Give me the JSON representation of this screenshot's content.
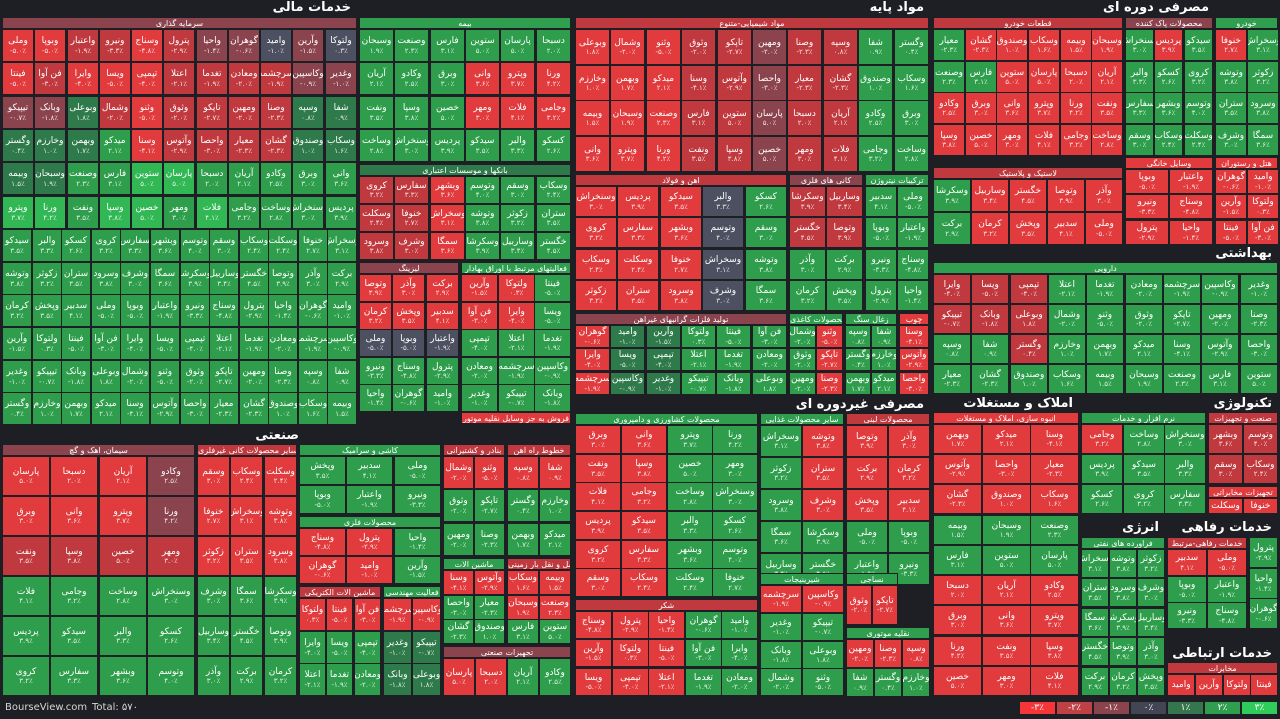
{
  "sectors": {
    "khadamat_mali": "خدمات مالی",
    "mavad_payeh": "مواد پایه",
    "masrafi_doreh_ei": "مصرفی دوره ای",
    "behdashti": "بهداشتی",
    "sanati": "صنعتی",
    "masrafi_gheyr_doreh_ei": "مصرفی غیردوره ای",
    "amlak": "املاک و مستغلات",
    "technology": "تکنولوژی",
    "energy": "انرژی",
    "khadamat_refahi": "خدمات رفاهی",
    "khadamat_ertebati": "خدمات ارتباطی",
    "cut_label": "عمده"
  },
  "subs": {
    "sarmaye": "سرمایه گذاری",
    "bimeh": "بیمه",
    "banks": "بانکها و موسسات اعتباری",
    "lizing": "لیزینگ",
    "faaliat_bahadar": "فعالیتهای مرتبط با اوراق بهادار",
    "shimiaei": "مواد شیمیایی-متنوع",
    "ahan": "اهن و فولاد",
    "kani": "کانی های فلزی",
    "nitrogen": "ترکیبات نیتروژن",
    "folad_gheyr_ahan": "تولید فلزات گرانبهای غیراهن",
    "kaghazi": "محصولات کاغذی",
    "zoghal": "زغال سنگ",
    "chob": "چوب",
    "khodro": "قطعات خودرو",
    "pakkonandeh": "محصولات پاک کننده",
    "khodro_main": "خودرو",
    "lastik": "لاستیک و پلاستیک",
    "vasayel_khanegi": "وسایل خانگی",
    "restaurant": "هتل و رستوران",
    "darooei": "دارویی",
    "siman": "سیمان، اهک و گچ",
    "sayer_kani": "سایر محصولات کانی غیرفلزی",
    "kashi": "کاشی و سرامیک",
    "felezi": "محصولات فلزی",
    "mohandesi": "فعالیت مهندسی",
    "electric": "ماشین الات الکتریکی",
    "bandar": "بنادر و کشتیرانی",
    "khotot_rah": "خطوط راه اهن",
    "mashin_alat": "ماشین الات",
    "haml_zamini": "حمل و نقل بار زمینی",
    "tajhizat": "تجهیزات صنعتی",
    "forush_vasayel": "فروش به جز وسایل نقلیه موتور",
    "keshavarzi": "محصولات کشاورزی و دامپروری",
    "ghazaei": "سایر محصولات غذایی",
    "labani": "محصولات لبنی",
    "shirini": "شیرینیجات",
    "nasaji": "نساجی",
    "shekar": "شکر",
    "naghlieh": "نقلیه موتوری",
    "anboh_sazi": "انبوه سازی، املاک و مستغلات",
    "narm_afzar": "نرم افزار و خدمات",
    "sanat_tajhizat": "صنعت و تجهیزات",
    "tajhizat_ertebati": "تجهیزات مخابراتی",
    "faravardeh": "فراورده های نفتی",
    "refahi_morab": "خدمات رفاهی-مرتبط",
    "mokhaberat": "مخابرات"
  },
  "cells": [
    {
      "s": "وملی",
      "p": "-۵.۰٪",
      "c": "r3"
    },
    {
      "s": "وبوپا",
      "p": "-۵.۰٪",
      "c": "r3"
    },
    {
      "s": "واعتبار",
      "p": "-۱.۹٪",
      "c": "r2"
    },
    {
      "s": "ونیرو",
      "p": "-۳.۳٪",
      "c": "r2"
    },
    {
      "s": "وسناج",
      "p": "-۴.۸٪",
      "c": "r3"
    },
    {
      "s": "پترول",
      "p": "-۲.۹٪",
      "c": "r2"
    },
    {
      "s": "واحیا",
      "p": "-۱.۴٪",
      "c": "r1"
    },
    {
      "s": "گوهران",
      "p": "-۰.۶٪",
      "c": "r1"
    },
    {
      "s": "وامید",
      "p": "-۱.۰٪",
      "c": "n"
    },
    {
      "s": "وآرین",
      "p": "-۱.۵٪",
      "c": "r1"
    },
    {
      "s": "ولتوکا",
      "p": "۰.۳٪",
      "c": "n"
    },
    {
      "s": "فینتا",
      "p": "-۵.۰٪",
      "c": "r3"
    },
    {
      "s": "فن آوا",
      "p": "-۳.۰٪",
      "c": "r2"
    },
    {
      "s": "وایرا",
      "p": "-۴.۰٪",
      "c": "r3"
    },
    {
      "s": "ویسا",
      "p": "-۵.۰٪",
      "c": "r3"
    },
    {
      "s": "تپمپی",
      "p": "-۴.۰٪",
      "c": "r3"
    },
    {
      "s": "اعتلا",
      "p": "-۲.۱٪",
      "c": "r2"
    },
    {
      "s": "تغدما",
      "p": "-۱.۹٪",
      "c": "r2"
    },
    {
      "s": "ومعادن",
      "p": "-۲.۰٪",
      "c": "r2"
    },
    {
      "s": "سرچشمه",
      "p": "-۱.۹٪",
      "c": "r2"
    },
    {
      "s": "وکاسپین",
      "p": "-۰.۹٪",
      "c": "r1"
    },
    {
      "s": "وغدیر",
      "p": "-۱.۰٪",
      "c": "r1"
    },
    {
      "s": "تیپیکو",
      "p": "-۰.۷٪",
      "c": "r1"
    },
    {
      "s": "وبانک",
      "p": "-۱.۸٪",
      "c": "r1"
    },
    {
      "s": "وبوعلی",
      "p": "۱.۸٪",
      "c": "g1"
    },
    {
      "s": "وشمال",
      "p": "-۲.۰٪",
      "c": "r2"
    },
    {
      "s": "وثنو",
      "p": "-۵.۰٪",
      "c": "r3"
    },
    {
      "s": "وثوق",
      "p": "-۲.۰٪",
      "c": "r2"
    },
    {
      "s": "تاپکو",
      "p": "-۲.۷٪",
      "c": "r2"
    },
    {
      "s": "ومهین",
      "p": "-۲.۰٪",
      "c": "r2"
    },
    {
      "s": "وصنا",
      "p": "-۲.۳٪",
      "c": "r2"
    },
    {
      "s": "وسپه",
      "p": "۰.۸٪",
      "c": "g1"
    },
    {
      "s": "شفا",
      "p": "۰.۹٪",
      "c": "g1"
    },
    {
      "s": "وگستر",
      "p": "۰.۴٪",
      "c": "g1"
    },
    {
      "s": "وخارزم",
      "p": "۱.۰٪",
      "c": "g1"
    },
    {
      "s": "وبهمن",
      "p": "۱.۷٪",
      "c": "g1"
    },
    {
      "s": "میدکو",
      "p": "۲.۱٪",
      "c": "g2"
    },
    {
      "s": "وسنا",
      "p": "-۴.۱٪",
      "c": "r3"
    },
    {
      "s": "وآتوس",
      "p": "-۲.۹٪",
      "c": "r2"
    },
    {
      "s": "واحصا",
      "p": "-۳.۰٪",
      "c": "r2"
    },
    {
      "s": "معیار",
      "p": "-۲.۳٪",
      "c": "r2"
    },
    {
      "s": "گشان",
      "p": "-۲.۳٪",
      "c": "r2"
    },
    {
      "s": "وصندوق",
      "p": "۱.۰٪",
      "c": "g1"
    },
    {
      "s": "وسکاب",
      "p": "۱.۶٪",
      "c": "g1"
    },
    {
      "s": "وبیمه",
      "p": "۱.۵٪",
      "c": "g1"
    },
    {
      "s": "وسبحان",
      "p": "۱.۹٪",
      "c": "g1"
    },
    {
      "s": "وصنعت",
      "p": "۲.۳٪",
      "c": "g2"
    },
    {
      "s": "فارس",
      "p": "۳.۱٪",
      "c": "g2"
    },
    {
      "s": "ستوین",
      "p": "۵.۰٪",
      "c": "g3"
    },
    {
      "s": "پارسان",
      "p": "۵.۰٪",
      "c": "g3"
    },
    {
      "s": "دسبحا",
      "p": "۲.۰٪",
      "c": "g2"
    },
    {
      "s": "آریان",
      "p": "۲.۱٪",
      "c": "g2"
    },
    {
      "s": "وکادو",
      "p": "۲.۵٪",
      "c": "g2"
    },
    {
      "s": "وبرق",
      "p": "۳.۰٪",
      "c": "g2"
    },
    {
      "s": "وانی",
      "p": "۳.۶٪",
      "c": "g3"
    },
    {
      "s": "وپترو",
      "p": "۳.۷٪",
      "c": "g3"
    },
    {
      "s": "ورنا",
      "p": "۴.۲٪",
      "c": "g3"
    },
    {
      "s": "ونفت",
      "p": "۳.۵٪",
      "c": "g2"
    },
    {
      "s": "وسپا",
      "p": "۳.۸٪",
      "c": "g3"
    },
    {
      "s": "خصین",
      "p": "۵.۰٪",
      "c": "g3"
    },
    {
      "s": "ومهر",
      "p": "۳.۰٪",
      "c": "g2"
    },
    {
      "s": "فلات",
      "p": "۴.۱٪",
      "c": "g3"
    },
    {
      "s": "وجامی",
      "p": "۳.۲٪",
      "c": "g2"
    },
    {
      "s": "وساخت",
      "p": "۲.۸٪",
      "c": "g2"
    },
    {
      "s": "وسنخراش",
      "p": "۳.۰٪",
      "c": "g2"
    },
    {
      "s": "پردیس",
      "p": "۳.۹٪",
      "c": "g3"
    },
    {
      "s": "سیدکو",
      "p": "۳.۵٪",
      "c": "g2"
    },
    {
      "s": "والبر",
      "p": "۳.۳٪",
      "c": "g2"
    },
    {
      "s": "کسکو",
      "p": "۲.۶٪",
      "c": "g2"
    },
    {
      "s": "کروی",
      "p": "۳.۲٪",
      "c": "g2"
    },
    {
      "s": "سفارس",
      "p": "۳.۳٪",
      "c": "g2"
    },
    {
      "s": "وبشهر",
      "p": "۳.۶٪",
      "c": "g3"
    },
    {
      "s": "وتوسم",
      "p": "۴.۰٪",
      "c": "g3"
    },
    {
      "s": "وسقم",
      "p": "۳.۰٪",
      "c": "g2"
    },
    {
      "s": "وسکاب",
      "p": "۲.۴٪",
      "c": "g2"
    },
    {
      "s": "وسکلت",
      "p": "۲.۴٪",
      "c": "g2"
    },
    {
      "s": "خنوفا",
      "p": "۲.۷٪",
      "c": "g2"
    },
    {
      "s": "وسخراش",
      "p": "۳.۱٪",
      "c": "g2"
    },
    {
      "s": "وتوشه",
      "p": "۳.۸٪",
      "c": "g3"
    },
    {
      "s": "زکوثر",
      "p": "۳.۲٪",
      "c": "g2"
    },
    {
      "s": "ستران",
      "p": "۳.۵٪",
      "c": "g2"
    },
    {
      "s": "وسرود",
      "p": "۳.۸٪",
      "c": "g3"
    },
    {
      "s": "وشرف",
      "p": "۳.۰٪",
      "c": "g2"
    },
    {
      "s": "سمگا",
      "p": "۳.۶٪",
      "c": "g3"
    },
    {
      "s": "وسکرشا",
      "p": "۳.۹٪",
      "c": "g3"
    },
    {
      "s": "وساربیل",
      "p": "۳.۴٪",
      "c": "g2"
    },
    {
      "s": "خگستر",
      "p": "۴.۵٪",
      "c": "g3"
    },
    {
      "s": "وتوصا",
      "p": "۳.۹٪",
      "c": "g3"
    },
    {
      "s": "وآذر",
      "p": "۳.۰٪",
      "c": "g2"
    },
    {
      "s": "برکت",
      "p": "۲.۹٪",
      "c": "g2"
    },
    {
      "s": "کرمان",
      "p": "۳.۲٪",
      "c": "g2"
    },
    {
      "s": "وپخش",
      "p": "۳.۵٪",
      "c": "g2"
    },
    {
      "s": "سدبیر",
      "p": "۴.۱٪",
      "c": "g3"
    }
  ],
  "legend": [
    "-۳٪",
    "-۲٪",
    "-۱٪",
    "۰٪",
    "۱٪",
    "۲٪",
    "۳٪"
  ],
  "legend_colors": [
    "#f63538",
    "#bf4045",
    "#8b444e",
    "#414554",
    "#35764e",
    "#2f9e4f",
    "#30cc5a"
  ],
  "footer": {
    "brand": "BourseView.com",
    "total": "Total: ۵۷۰"
  },
  "palette": {
    "r3": "#e23b3e",
    "r2": "#c0393e",
    "r1": "#8b444e",
    "n": "#4d5060",
    "g1": "#2f7a4a",
    "g2": "#2e9e4c",
    "g3": "#31b855"
  }
}
